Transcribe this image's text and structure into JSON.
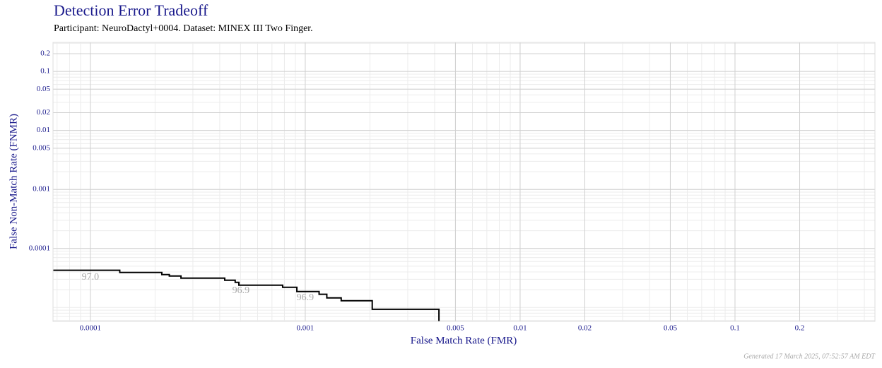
{
  "chart_data": {
    "type": "step",
    "title": "Detection Error Tradeoff",
    "subtitle": "Participant: NeuroDactyl+0004. Dataset: MINEX III Two Finger.",
    "xlabel": "False Match Rate (FMR)",
    "ylabel": "False Non-Match Rate (FNMR)",
    "footer": "Generated 17 March 2025, 07:52:57 AM EDT",
    "xscale": "log",
    "yscale": "log",
    "grid": true,
    "xlim": [
      6.7e-05,
      0.448
    ],
    "ylim": [
      5.8e-06,
      0.311
    ],
    "xticks": [
      0.0001,
      0.001,
      0.005,
      0.01,
      0.02,
      0.05,
      0.1,
      0.2
    ],
    "yticks": [
      0.0001,
      0.001,
      0.005,
      0.01,
      0.02,
      0.05,
      0.1,
      0.2
    ],
    "series": [
      {
        "color": "#000000",
        "x": [
          6.7e-05,
          0.000137,
          0.000215,
          0.000233,
          0.000264,
          0.000422,
          0.000472,
          0.000491,
          0.000785,
          0.000914,
          0.00116,
          0.00126,
          0.00147,
          0.00205,
          0.00419
        ],
        "values": [
          4.26e-05,
          3.92e-05,
          3.6e-05,
          3.41e-05,
          3.14e-05,
          2.89e-05,
          2.66e-05,
          2.38e-05,
          2.19e-05,
          1.86e-05,
          1.67e-05,
          1.45e-05,
          1.3e-05,
          9.3e-06,
          5.8e-06
        ]
      }
    ],
    "annotations": [
      {
        "text": "97.0",
        "x": 0.0001,
        "y": 3.23e-05
      },
      {
        "text": "96.9",
        "x": 0.000502,
        "y": 1.91e-05
      },
      {
        "text": "96.9",
        "x": 0.001,
        "y": 1.45e-05
      }
    ]
  }
}
